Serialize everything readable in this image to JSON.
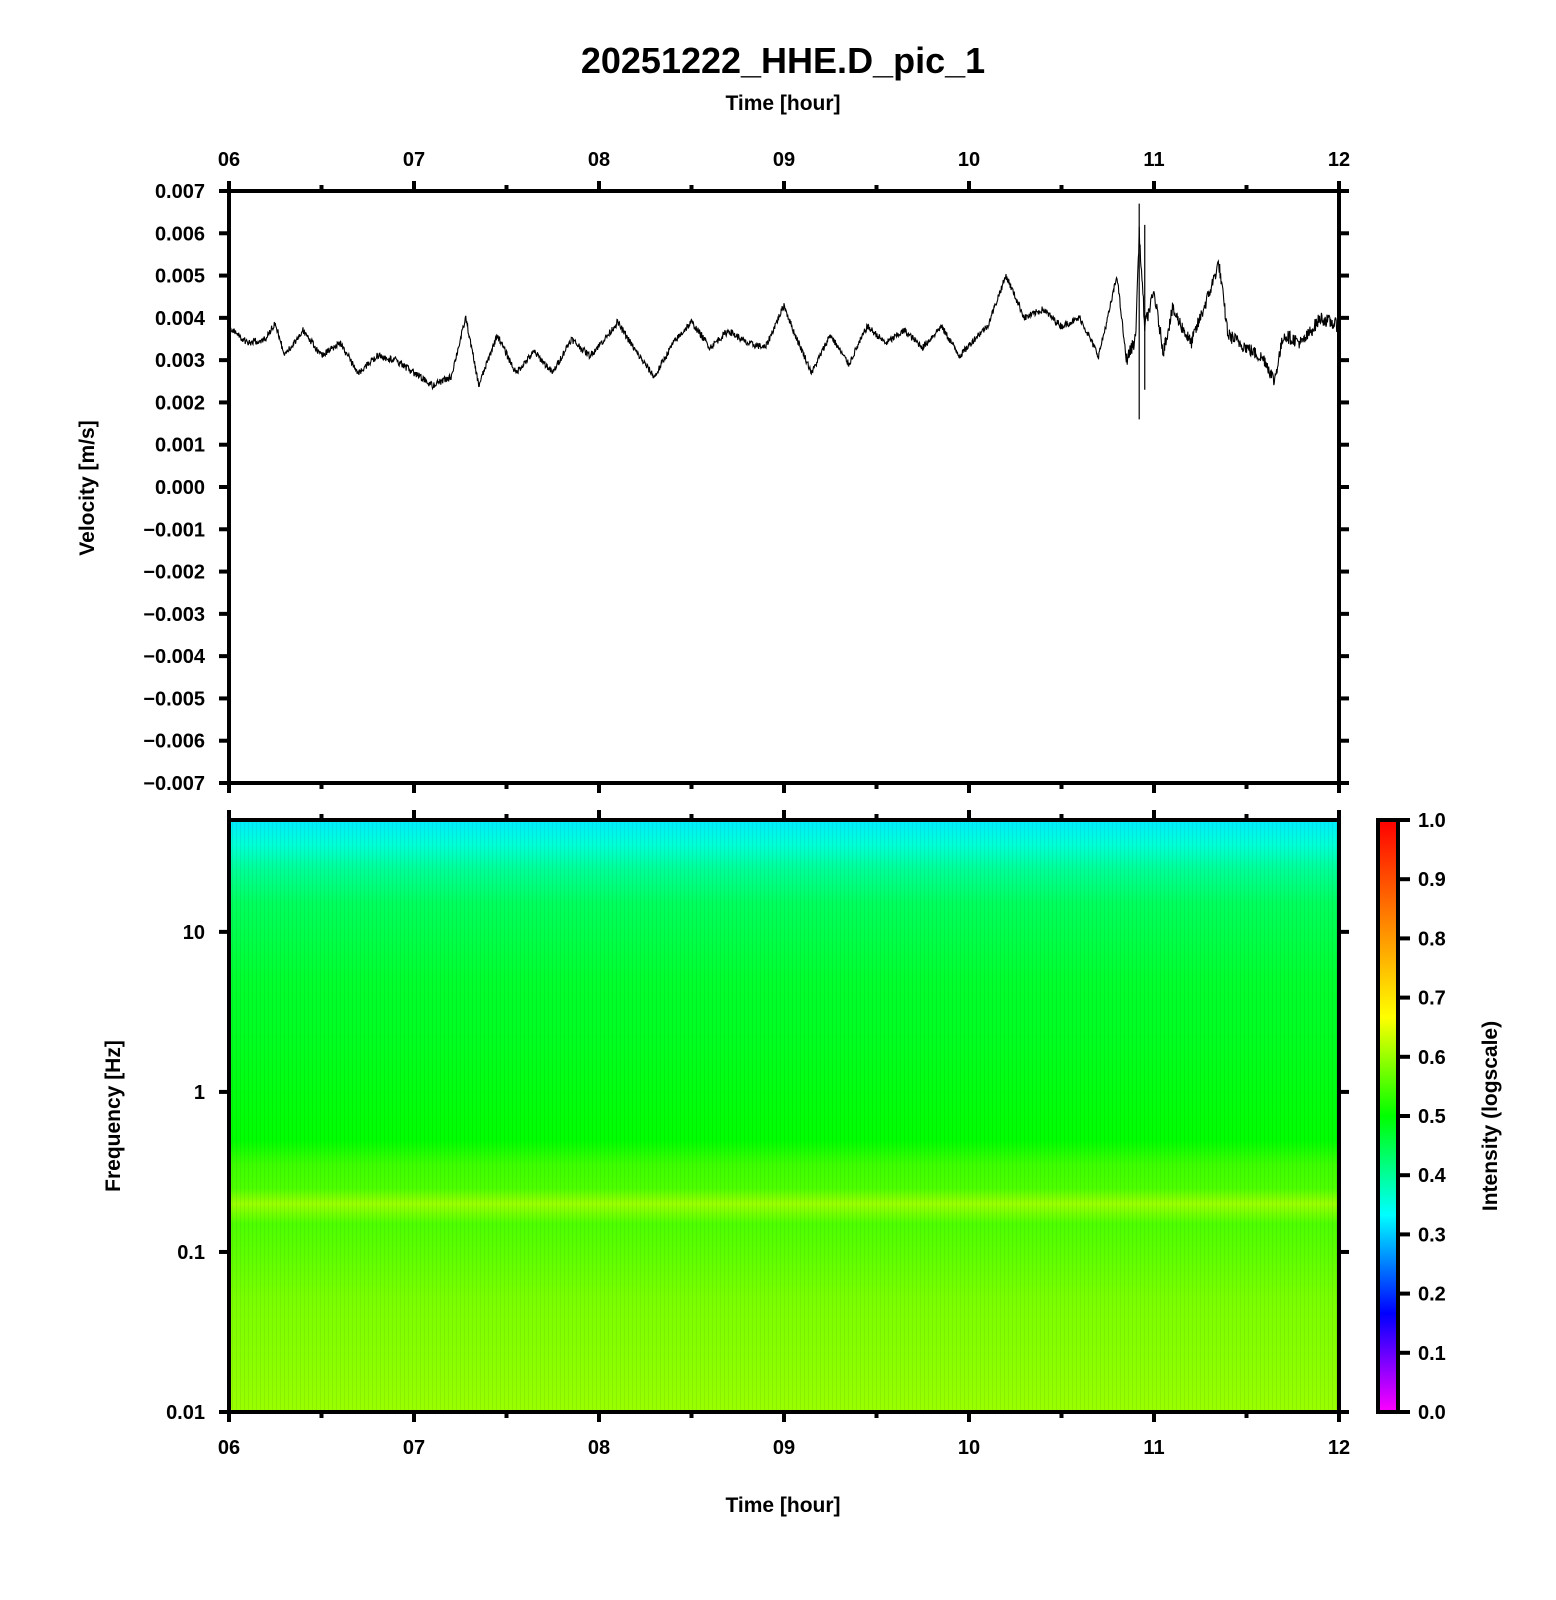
{
  "chart_data": [
    {
      "type": "line",
      "title": "20251222_HHE.D_pic_1",
      "xlabel": "Time [hour]",
      "ylabel": "Velocity [m/s]",
      "xlim": [
        6,
        12
      ],
      "ylim": [
        -0.007,
        0.007
      ],
      "x_tick_labels": [
        "06",
        "07",
        "08",
        "09",
        "10",
        "11",
        "12"
      ],
      "y_tick_labels": [
        "0.007",
        "0.006",
        "0.005",
        "0.004",
        "0.003",
        "0.002",
        "0.001",
        "0.000",
        "−0.001",
        "−0.002",
        "−0.003",
        "−0.004",
        "−0.005",
        "−0.006",
        "−0.007"
      ],
      "series": [
        {
          "x": [
            6.0,
            6.1,
            6.2,
            6.25,
            6.3,
            6.4,
            6.5,
            6.6,
            6.7,
            6.8,
            6.9,
            7.0,
            7.1,
            7.2,
            7.28,
            7.35,
            7.45,
            7.55,
            7.65,
            7.75,
            7.85,
            7.95,
            8.05,
            8.1,
            8.2,
            8.3,
            8.4,
            8.5,
            8.6,
            8.7,
            8.8,
            8.9,
            9.0,
            9.05,
            9.15,
            9.25,
            9.35,
            9.45,
            9.55,
            9.65,
            9.75,
            9.85,
            9.95,
            10.05,
            10.1,
            10.2,
            10.3,
            10.4,
            10.5,
            10.6,
            10.7,
            10.75,
            10.8,
            10.85,
            10.9,
            10.92,
            10.95,
            11.0,
            11.05,
            11.1,
            11.2,
            11.3,
            11.35,
            11.4,
            11.5,
            11.6,
            11.65,
            11.7,
            11.8,
            11.9,
            12.0
          ],
          "values": [
            0.0038,
            0.0034,
            0.0035,
            0.0039,
            0.0031,
            0.0037,
            0.0031,
            0.0034,
            0.0027,
            0.0031,
            0.003,
            0.0027,
            0.0024,
            0.0026,
            0.004,
            0.0024,
            0.0036,
            0.0027,
            0.0032,
            0.0027,
            0.0035,
            0.0031,
            0.0036,
            0.0039,
            0.0032,
            0.0026,
            0.0034,
            0.0039,
            0.0033,
            0.0037,
            0.0034,
            0.0033,
            0.0043,
            0.0037,
            0.0027,
            0.0036,
            0.0029,
            0.0038,
            0.0034,
            0.0037,
            0.0033,
            0.0038,
            0.0031,
            0.0036,
            0.0038,
            0.005,
            0.004,
            0.0042,
            0.0038,
            0.004,
            0.0031,
            0.004,
            0.005,
            0.003,
            0.0035,
            0.006,
            0.0038,
            0.0046,
            0.0032,
            0.0042,
            0.0034,
            0.0046,
            0.0053,
            0.0036,
            0.0033,
            0.003,
            0.0025,
            0.0036,
            0.0034,
            0.004,
            0.0038
          ]
        }
      ],
      "events": [
        {
          "x": 10.92,
          "max": 0.0067,
          "min": 0.0016
        },
        {
          "x": 10.95,
          "max": 0.0062,
          "min": 0.0023
        }
      ]
    },
    {
      "type": "heatmap",
      "xlabel": "Time [hour]",
      "ylabel": "Frequency [Hz]",
      "xlim": [
        6,
        12
      ],
      "ylim": [
        0.01,
        50
      ],
      "yscale": "log",
      "x_tick_labels": [
        "06",
        "07",
        "08",
        "09",
        "10",
        "11",
        "12"
      ],
      "y_ticks": [
        10,
        1,
        0.1,
        0.01
      ],
      "y_tick_labels": [
        "10",
        "1",
        "0.1",
        "0.01"
      ],
      "intensity_profile": {
        "frequency_hz": [
          50,
          35,
          25,
          15,
          10,
          5,
          2,
          1,
          0.5,
          0.35,
          0.25,
          0.2,
          0.15,
          0.1,
          0.05,
          0.02,
          0.01
        ],
        "intensity": [
          0.32,
          0.36,
          0.4,
          0.44,
          0.45,
          0.47,
          0.48,
          0.49,
          0.5,
          0.54,
          0.55,
          0.6,
          0.55,
          0.56,
          0.58,
          0.59,
          0.6
        ]
      },
      "colorbar": {
        "label": "Intensity (logscale)",
        "range": [
          0.0,
          1.0
        ],
        "tick_labels": [
          "0.0",
          "0.1",
          "0.2",
          "0.3",
          "0.4",
          "0.5",
          "0.6",
          "0.7",
          "0.8",
          "0.9",
          "1.0"
        ],
        "colors": [
          "#ff00ff",
          "#0000ff",
          "#00ffff",
          "#00ff00",
          "#ffff00",
          "#ff8000",
          "#ff0000"
        ]
      }
    }
  ]
}
